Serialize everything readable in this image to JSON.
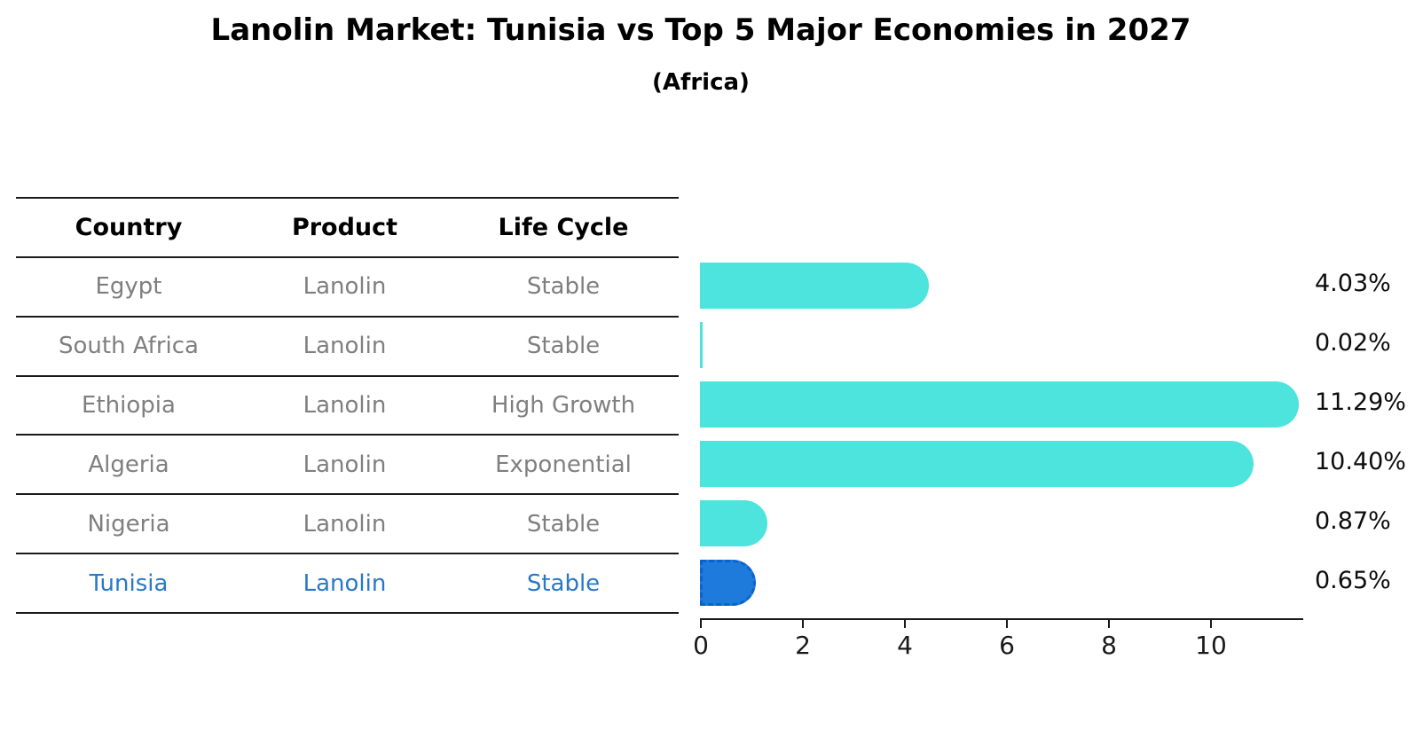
{
  "title": "Lanolin Market: Tunisia vs Top 5 Major Economies in 2027",
  "subtitle": "(Africa)",
  "table": {
    "headers": [
      "Country",
      "Product",
      "Life Cycle"
    ]
  },
  "chart_data": {
    "type": "bar",
    "orientation": "horizontal",
    "title": "Lanolin Market: Tunisia vs Top 5 Major Economies in 2027",
    "subtitle": "(Africa)",
    "categories": [
      "Egypt",
      "South Africa",
      "Ethiopia",
      "Algeria",
      "Nigeria",
      "Tunisia"
    ],
    "values": [
      4.03,
      0.02,
      11.29,
      10.4,
      0.87,
      0.65
    ],
    "value_labels": [
      "4.03%",
      "0.02%",
      "11.29%",
      "10.40%",
      "0.87%",
      "0.65%"
    ],
    "rows": [
      {
        "country": "Egypt",
        "product": "Lanolin",
        "life_cycle": "Stable",
        "value": 4.03,
        "value_label": "4.03%",
        "highlighted": false
      },
      {
        "country": "South Africa",
        "product": "Lanolin",
        "life_cycle": "Stable",
        "value": 0.02,
        "value_label": "0.02%",
        "highlighted": false
      },
      {
        "country": "Ethiopia",
        "product": "Lanolin",
        "life_cycle": "High Growth",
        "value": 11.29,
        "value_label": "11.29%",
        "highlighted": false
      },
      {
        "country": "Algeria",
        "product": "Lanolin",
        "life_cycle": "Exponential",
        "value": 10.4,
        "value_label": "10.40%",
        "highlighted": false
      },
      {
        "country": "Nigeria",
        "product": "Lanolin",
        "life_cycle": "Stable",
        "value": 0.87,
        "value_label": "0.87%",
        "highlighted": false
      },
      {
        "country": "Tunisia",
        "product": "Lanolin",
        "life_cycle": "Stable",
        "value": 0.65,
        "value_label": "0.65%",
        "highlighted": true
      }
    ],
    "xticks": [
      0,
      2,
      4,
      6,
      8,
      10
    ],
    "xlim": [
      0,
      11.8
    ],
    "grid": false,
    "legend": "none",
    "highlight_category": "Tunisia"
  },
  "colors": {
    "bar": "#4CE4DD",
    "highlight_bar": "#1E7BDB",
    "highlight_bar_border": "#0B62CE",
    "row_text": "#7f7f7f",
    "highlight_text": "#2878C8",
    "heading_text": "#000000",
    "axis": "#1a1a1a"
  }
}
